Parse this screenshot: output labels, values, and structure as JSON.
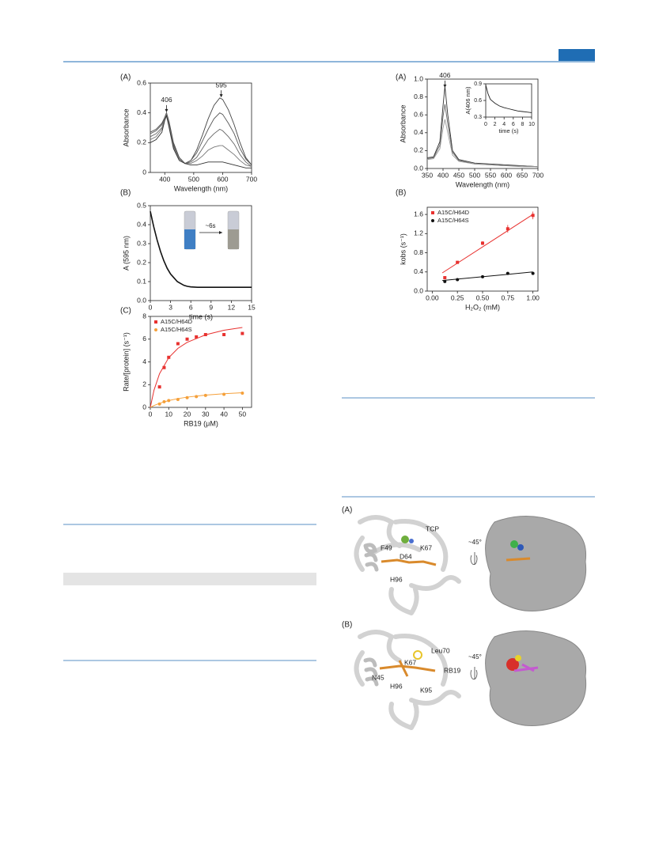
{
  "chart_data": [
    {
      "type": "line",
      "panel_label": "(A)",
      "xlabel": "Wavelength (nm)",
      "ylabel": "Absorbance",
      "xlim": [
        350,
        700
      ],
      "ylim": [
        0,
        0.6
      ],
      "xticks": [
        400,
        500,
        600,
        700
      ],
      "yticks": [
        0,
        0.2,
        0.4,
        0.6
      ],
      "x": [
        350,
        370,
        390,
        400,
        406,
        415,
        430,
        450,
        470,
        490,
        510,
        530,
        550,
        570,
        590,
        600,
        620,
        640,
        660,
        680,
        700
      ],
      "series": [
        {
          "color": "#444444",
          "values": [
            0.27,
            0.29,
            0.33,
            0.37,
            0.4,
            0.34,
            0.2,
            0.1,
            0.06,
            0.08,
            0.15,
            0.25,
            0.36,
            0.45,
            0.5,
            0.49,
            0.42,
            0.32,
            0.2,
            0.1,
            0.05
          ]
        },
        {
          "color": "#555555",
          "values": [
            0.26,
            0.28,
            0.32,
            0.37,
            0.4,
            0.33,
            0.19,
            0.1,
            0.06,
            0.08,
            0.13,
            0.21,
            0.29,
            0.36,
            0.4,
            0.39,
            0.33,
            0.26,
            0.16,
            0.09,
            0.05
          ]
        },
        {
          "color": "#666666",
          "values": [
            0.24,
            0.26,
            0.3,
            0.36,
            0.39,
            0.32,
            0.18,
            0.09,
            0.06,
            0.07,
            0.1,
            0.16,
            0.22,
            0.26,
            0.29,
            0.28,
            0.24,
            0.19,
            0.12,
            0.07,
            0.04
          ]
        },
        {
          "color": "#777777",
          "values": [
            0.22,
            0.24,
            0.29,
            0.36,
            0.39,
            0.31,
            0.17,
            0.09,
            0.06,
            0.06,
            0.08,
            0.11,
            0.15,
            0.17,
            0.18,
            0.18,
            0.15,
            0.12,
            0.08,
            0.05,
            0.04
          ]
        },
        {
          "color": "#333333",
          "values": [
            0.2,
            0.22,
            0.27,
            0.35,
            0.38,
            0.3,
            0.16,
            0.08,
            0.06,
            0.05,
            0.05,
            0.06,
            0.07,
            0.07,
            0.07,
            0.07,
            0.06,
            0.05,
            0.04,
            0.03,
            0.03
          ]
        }
      ],
      "annotations": [
        {
          "text": "406",
          "x": 406,
          "y": 0.42
        },
        {
          "text": "595",
          "x": 595,
          "y": 0.52
        }
      ]
    },
    {
      "type": "line",
      "panel_label": "(B)",
      "xlabel": "time (s)",
      "ylabel": "A (595 nm)",
      "xlim": [
        0,
        15
      ],
      "ylim": [
        0,
        0.5
      ],
      "xticks": [
        0,
        3,
        6,
        9,
        12,
        15
      ],
      "yticks": [
        {
          "value": 0,
          "label": "0.0"
        },
        0.1,
        0.2,
        0.3,
        0.4,
        0.5
      ],
      "x": [
        0,
        0.5,
        1,
        1.5,
        2,
        2.5,
        3,
        3.5,
        4,
        4.5,
        5,
        5.5,
        6,
        7,
        8,
        9,
        10,
        11,
        12,
        13,
        14,
        15
      ],
      "series": [
        {
          "color": "#111111",
          "values": [
            0.47,
            0.39,
            0.32,
            0.26,
            0.21,
            0.17,
            0.14,
            0.12,
            0.1,
            0.09,
            0.08,
            0.075,
            0.072,
            0.07,
            0.07,
            0.07,
            0.07,
            0.07,
            0.07,
            0.07,
            0.07,
            0.07
          ]
        }
      ],
      "inset_label": "~6s"
    },
    {
      "type": "scatter",
      "panel_label": "(C)",
      "xlabel": "RB19 (μM)",
      "ylabel": "Rate/[protein] (s⁻¹)",
      "xlim": [
        0,
        55
      ],
      "ylim": [
        0,
        8
      ],
      "xticks": [
        0,
        10,
        20,
        30,
        40,
        50
      ],
      "yticks": [
        0,
        2,
        4,
        6,
        8
      ],
      "legend": "upper left",
      "series": [
        {
          "name": "A15C/H64D",
          "color": "#e8312f",
          "marker": "square",
          "x": [
            5,
            7.5,
            10,
            15,
            20,
            25,
            30,
            40,
            50
          ],
          "values": [
            1.8,
            3.5,
            4.4,
            5.6,
            6.0,
            6.2,
            6.4,
            6.4,
            6.5
          ],
          "fit": {
            "x": [
              0,
              2,
              5,
              10,
              15,
              20,
              30,
              40,
              50
            ],
            "values": [
              0,
              1.51,
              2.96,
              4.37,
              5.19,
              5.72,
              6.38,
              6.78,
              7.03
            ]
          }
        },
        {
          "name": "A15C/H64S",
          "color": "#f5a03a",
          "marker": "circle",
          "x": [
            5,
            7.5,
            10,
            15,
            20,
            25,
            30,
            40,
            50
          ],
          "values": [
            0.3,
            0.5,
            0.6,
            0.7,
            0.85,
            0.95,
            1.05,
            1.15,
            1.25
          ],
          "fit": {
            "x": [
              0,
              2,
              5,
              10,
              15,
              20,
              30,
              40,
              50
            ],
            "values": [
              0,
              0.16,
              0.36,
              0.6,
              0.77,
              0.9,
              1.08,
              1.2,
              1.29
            ]
          }
        }
      ]
    },
    {
      "type": "line",
      "panel_label": "(A)",
      "xlabel": "Wavelength (nm)",
      "ylabel": "Absorbance",
      "xlim": [
        350,
        700
      ],
      "ylim": [
        0,
        1.0
      ],
      "xticks": [
        350,
        400,
        450,
        500,
        550,
        600,
        650,
        700
      ],
      "yticks": [
        {
          "value": 0,
          "label": "0.0"
        },
        0.2,
        0.4,
        0.6,
        0.8,
        {
          "value": 1,
          "label": "1.0"
        }
      ],
      "x": [
        350,
        370,
        390,
        400,
        406,
        415,
        430,
        450,
        500,
        550,
        600,
        650,
        700
      ],
      "series": [
        {
          "color": "#333333",
          "values": [
            0.12,
            0.13,
            0.3,
            0.7,
            0.92,
            0.6,
            0.2,
            0.1,
            0.06,
            0.05,
            0.04,
            0.03,
            0.02
          ]
        },
        {
          "color": "#666666",
          "values": [
            0.11,
            0.12,
            0.26,
            0.58,
            0.72,
            0.5,
            0.18,
            0.09,
            0.05,
            0.04,
            0.03,
            0.03,
            0.02
          ]
        },
        {
          "color": "#999999",
          "values": [
            0.1,
            0.11,
            0.22,
            0.45,
            0.55,
            0.4,
            0.15,
            0.08,
            0.05,
            0.04,
            0.03,
            0.02,
            0.02
          ]
        }
      ],
      "annotations": [
        {
          "text": "406",
          "x": 406,
          "y": 0.93
        }
      ]
    },
    {
      "type": "line",
      "xlabel": "time (s)",
      "ylabel": "A(406 nm)",
      "xlim": [
        0,
        10
      ],
      "ylim": [
        0.3,
        0.9
      ],
      "xticks": [
        0,
        2,
        4,
        6,
        8,
        10
      ],
      "yticks": [
        0.3,
        0.6,
        0.9
      ],
      "x": [
        0,
        0.5,
        1,
        2,
        3,
        4,
        5,
        6,
        7,
        8,
        9,
        10
      ],
      "series": [
        {
          "color": "#222222",
          "values": [
            0.88,
            0.72,
            0.62,
            0.55,
            0.5,
            0.47,
            0.45,
            0.43,
            0.41,
            0.4,
            0.39,
            0.38
          ]
        }
      ]
    },
    {
      "type": "scatter",
      "panel_label": "(B)",
      "xlabel": "H₂O₂ (mM)",
      "ylabel": "kobs (s⁻¹)",
      "xlim": [
        -0.05,
        1.05
      ],
      "ylim": [
        0,
        1.75
      ],
      "xticks": [
        {
          "value": 0,
          "label": "0.00"
        },
        0.25,
        {
          "value": 0.5,
          "label": "0.50"
        },
        0.75,
        {
          "value": 1,
          "label": "1.00"
        }
      ],
      "yticks": [
        {
          "value": 0,
          "label": "0.0"
        },
        0.4,
        0.8,
        1.2,
        1.6
      ],
      "legend": "upper left",
      "series": [
        {
          "name": "A15C/H64D",
          "color": "#e8312f",
          "marker": "square",
          "x": [
            0.125,
            0.25,
            0.5,
            0.75,
            1.0
          ],
          "values": [
            0.28,
            0.6,
            1.0,
            1.3,
            1.58
          ],
          "errors": [
            0.02,
            0.03,
            0.04,
            0.08,
            0.08
          ],
          "fit": {
            "x": [
              0.1,
              1.0
            ],
            "values": [
              0.38,
              1.6
            ]
          }
        },
        {
          "name": "A15C/H64S",
          "color": "#111111",
          "marker": "circle",
          "x": [
            0.125,
            0.25,
            0.5,
            0.75,
            1.0
          ],
          "values": [
            0.2,
            0.24,
            0.3,
            0.37,
            0.37
          ],
          "fit": {
            "x": [
              0.1,
              1.0
            ],
            "values": [
              0.22,
              0.4
            ]
          }
        }
      ]
    }
  ],
  "figure_structures": {
    "panels": [
      {
        "label": "(A)",
        "residues": [
          "TCP",
          "F49",
          "K67",
          "D64",
          "H96"
        ],
        "rotation": "~45°"
      },
      {
        "label": "(B)",
        "residues": [
          "Leu70",
          "K67",
          "N45",
          "RB19",
          "H96",
          "K95"
        ],
        "rotation": "~45°"
      }
    ]
  }
}
